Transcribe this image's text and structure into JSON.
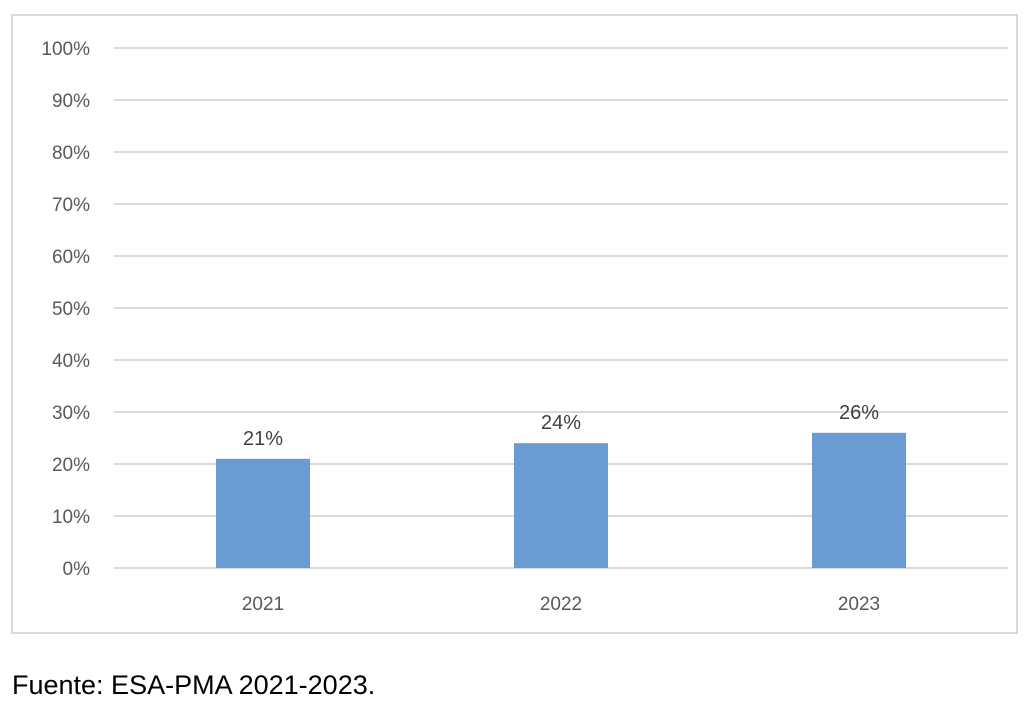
{
  "chart_data": {
    "type": "bar",
    "categories": [
      "2021",
      "2022",
      "2023"
    ],
    "values": [
      21,
      24,
      26
    ],
    "data_labels": [
      "21%",
      "24%",
      "26%"
    ],
    "ylim": [
      0,
      100
    ],
    "y_ticks": [
      0,
      10,
      20,
      30,
      40,
      50,
      60,
      70,
      80,
      90,
      100
    ],
    "y_tick_labels": [
      "0%",
      "10%",
      "20%",
      "30%",
      "40%",
      "50%",
      "60%",
      "70%",
      "80%",
      "90%",
      "100%"
    ],
    "grid": true,
    "legend": "none",
    "bar_color": "#6a9bd2",
    "grid_color": "#d9d9d9"
  },
  "source_note": "Fuente: ESA-PMA 2021-2023."
}
